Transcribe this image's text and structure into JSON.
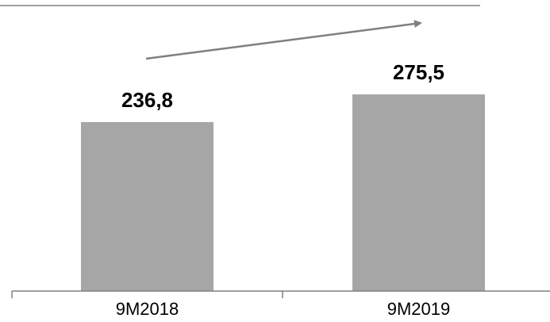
{
  "chart_data": {
    "type": "bar",
    "categories": [
      "9M2018",
      "9M2019"
    ],
    "values": [
      236.8,
      275.5
    ],
    "value_labels": [
      "236,8",
      "275,5"
    ],
    "title": "",
    "xlabel": "",
    "ylabel": "",
    "ylim": [
      0,
      400
    ],
    "grid": false,
    "legend": "none",
    "trend_arrow": true,
    "colors": {
      "bar": "#a6a6a6",
      "arrow": "#7f7f7f",
      "axis": "#808080",
      "label": "#000000"
    }
  }
}
